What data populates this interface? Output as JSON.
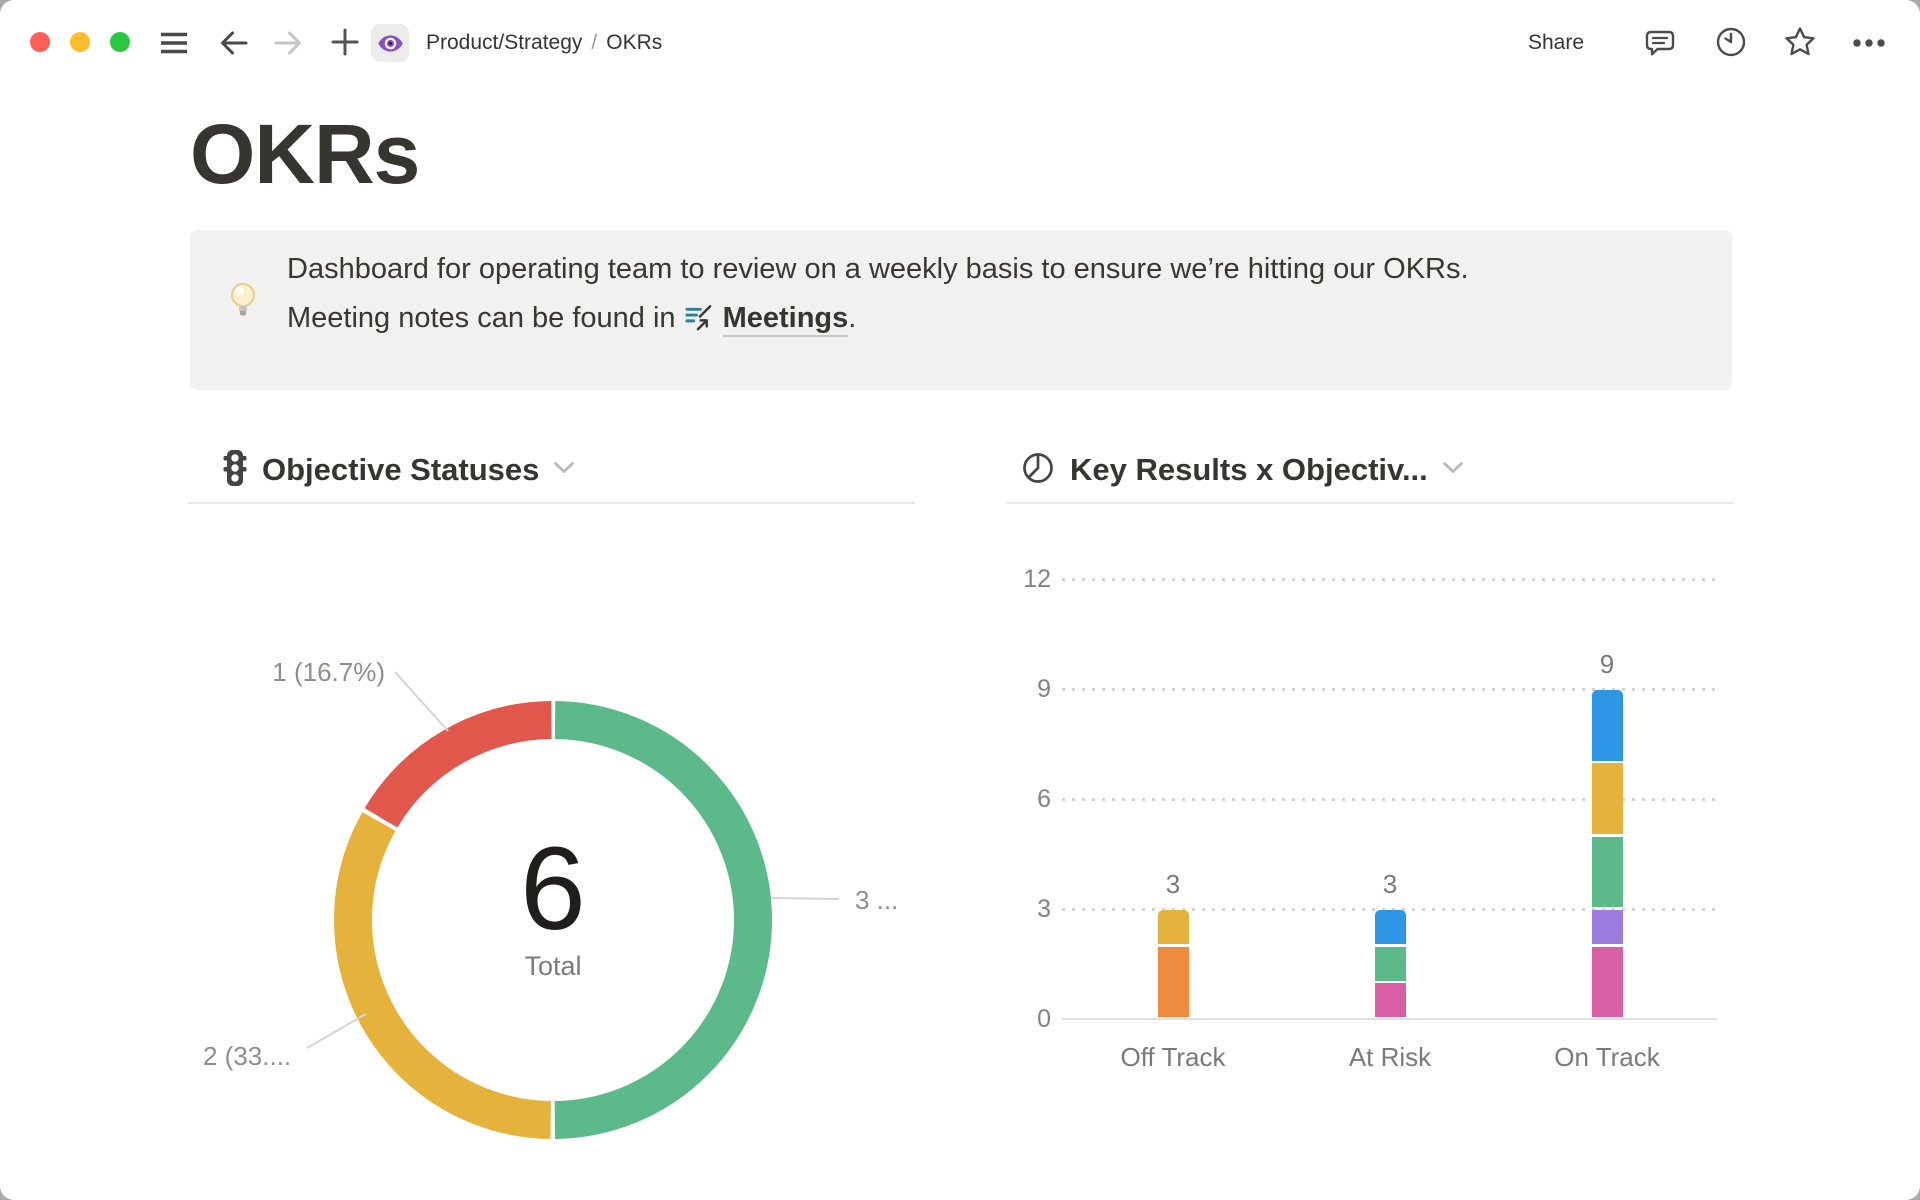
{
  "window": {
    "controls": [
      "close",
      "minimize",
      "zoom"
    ],
    "toolbar": {
      "left_icons": [
        "menu-icon",
        "arrow-left-icon",
        "arrow-right-icon",
        "plus-icon"
      ],
      "page_icon": "eye-icon",
      "breadcrumb": {
        "parent": "Product/Strategy",
        "separator": "/",
        "current": "OKRs"
      },
      "share_label": "Share",
      "right_icons": [
        "comment-icon",
        "clock-icon",
        "star-icon",
        "more-icon"
      ]
    }
  },
  "page": {
    "title": "OKRs",
    "callout": {
      "icon": "light-bulb",
      "line1": "Dashboard for operating team to review on a weekly basis to ensure we’re hitting our OKRs.",
      "line2_prefix": "Meeting notes can be found in",
      "link_icon": "meetings-page-icon",
      "link_text": "Meetings",
      "line2_suffix": "."
    }
  },
  "chart_data": [
    {
      "type": "pie",
      "style": "donut",
      "title": "Objective Statuses",
      "header_icon": "traffic-light-icon",
      "center_value": "6",
      "center_label": "Total",
      "total": 6,
      "direction": "clockwise-from-top",
      "segments": [
        {
          "value": 3,
          "percent": 50.0,
          "color": "#5CB98A",
          "label": "3 ..."
        },
        {
          "value": 2,
          "percent": 33.3,
          "color": "#E5B33C",
          "label": "2 (33...."
        },
        {
          "value": 1,
          "percent": 16.7,
          "color": "#E2574C",
          "label": "1 (16.7%)"
        }
      ]
    },
    {
      "type": "bar",
      "stacked": true,
      "title": "Key Results x Objectiv...",
      "header_icon": "pie-chart-icon",
      "categories": [
        "Off Track",
        "At Risk",
        "On Track"
      ],
      "totals": [
        3,
        3,
        9
      ],
      "y_ticks": [
        0,
        3,
        6,
        9,
        12
      ],
      "ylim": [
        0,
        12
      ],
      "grid": "dotted-horizontal",
      "legend": "none",
      "stacks": [
        [
          {
            "value": 2,
            "color": "#EE8B3D"
          },
          {
            "value": 1,
            "color": "#E5B33C"
          }
        ],
        [
          {
            "value": 1,
            "color": "#D85FA3"
          },
          {
            "value": 1,
            "color": "#5CB98A"
          },
          {
            "value": 1,
            "color": "#2D96E5"
          }
        ],
        [
          {
            "value": 2,
            "color": "#D85FA3"
          },
          {
            "value": 1,
            "color": "#9C7BDE"
          },
          {
            "value": 2,
            "color": "#5CB98A"
          },
          {
            "value": 2,
            "color": "#E5B33C"
          },
          {
            "value": 2,
            "color": "#2D96E5"
          }
        ]
      ]
    }
  ],
  "theme": {
    "text": "#37352F",
    "muted_text": "#82817C",
    "callout_bg": "#F1F1EF",
    "divider": "#E8E7E4",
    "traffic_lights": [
      "#FF5F57",
      "#FEBC2E",
      "#28C840"
    ],
    "page_icon_color": "#8D4EC4",
    "link_icon_color": "#2E7EA3"
  }
}
